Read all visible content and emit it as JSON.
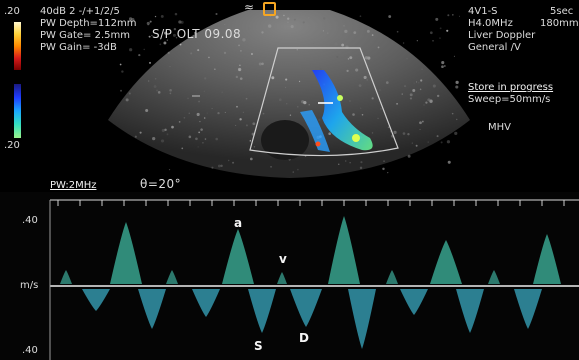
{
  "color_scale": {
    "top": ".20",
    "bottom": ".20"
  },
  "settings": {
    "line1": "40dB  2 -/+1/2/5",
    "depth": "PW Depth=112mm",
    "gate": "PW Gate=  2.5mm",
    "gain": "PW Gain=  -3dB"
  },
  "study_label": "S/P OLT 09.08",
  "probe": {
    "name": "4V1-S",
    "time": "5sec",
    "freq": "H4.0MHz",
    "depth": "180mm",
    "preset": "Liver Doppler",
    "mode": "General /V"
  },
  "status": {
    "store": "Store in progress",
    "sweep": "Sweep=50mm/s"
  },
  "vessel_label": "MHV",
  "doppler": {
    "pw_freq": "PW:2MHz",
    "angle": "θ=20°"
  },
  "spectrum": {
    "axis_top": ".40",
    "axis_unit": "m/s",
    "axis_bottom": ".40",
    "wave_a": "a",
    "wave_v": "v",
    "wave_s": "S",
    "wave_d": "D"
  }
}
